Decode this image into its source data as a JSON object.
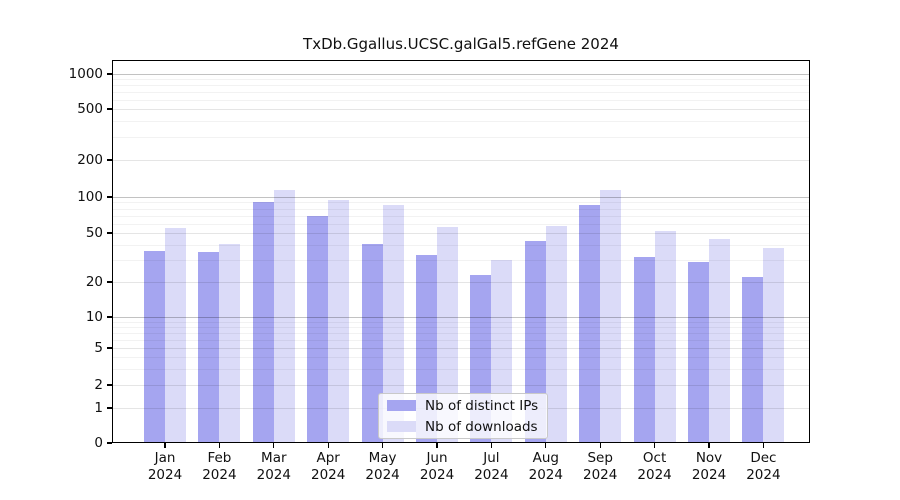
{
  "chart_data": {
    "type": "bar",
    "title": "TxDb.Ggallus.UCSC.galGal5.refGene 2024",
    "categories": [
      "Jan 2024",
      "Feb 2024",
      "Mar 2024",
      "Apr 2024",
      "May 2024",
      "Jun 2024",
      "Jul 2024",
      "Aug 2024",
      "Sep 2024",
      "Oct 2024",
      "Nov 2024",
      "Dec 2024"
    ],
    "series": [
      {
        "name": "Nb of distinct IPs",
        "color": "#a5a5f0",
        "values": [
          36,
          35,
          91,
          70,
          41,
          33,
          23,
          43,
          85,
          32,
          29,
          22
        ]
      },
      {
        "name": "Nb of downloads",
        "color": "#dbdbf8",
        "values": [
          55,
          41,
          114,
          94,
          85,
          56,
          30,
          57,
          114,
          52,
          45,
          38
        ]
      }
    ],
    "yscale": "symlog",
    "yticks": [
      0,
      1,
      2,
      5,
      10,
      20,
      50,
      100,
      200,
      500,
      1000
    ],
    "ylim": [
      0,
      1300
    ],
    "xlabel": "",
    "ylabel": "",
    "grid": true,
    "legend_position": "lower center",
    "background": "#ffffff"
  }
}
